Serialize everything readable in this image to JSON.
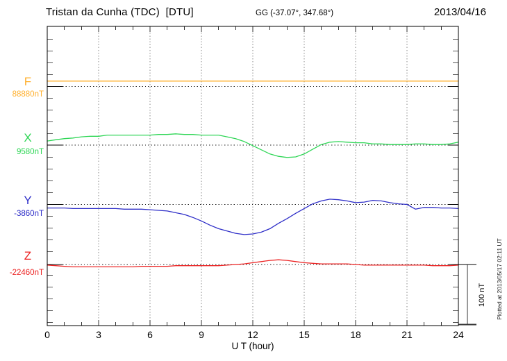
{
  "header": {
    "station_title": "Tristan da Cunha (TDC)  [DTU]",
    "coords": "GG (-37.07°, 347.68°)",
    "date": "2013/04/16"
  },
  "side": {
    "scale_label": "100 nT",
    "plotted_at": "Plotted at 2013/05/17 02:11 UT"
  },
  "axis": {
    "xlabel": "U T (hour)",
    "x_ticks": [
      0,
      3,
      6,
      9,
      12,
      15,
      18,
      21,
      24
    ]
  },
  "chart_data": {
    "type": "line",
    "title": "Magnetogram Tristan da Cunha (TDC) [DTU] 2013/04/16",
    "x_unit": "UT hour",
    "x_range": [
      0,
      24
    ],
    "grid_hours": [
      3,
      6,
      9,
      12,
      15,
      18,
      21
    ],
    "scale_bar_nT": 100,
    "series": [
      {
        "id": "F",
        "label": "F",
        "baseline_label": "88880nT",
        "baseline_value": 88880,
        "color": "#ffb02e",
        "points": [
          [
            0,
            88889
          ],
          [
            24,
            88889
          ]
        ]
      },
      {
        "id": "X",
        "label": "X",
        "baseline_label": "9580nT",
        "baseline_value": 9580,
        "color": "#2fd656",
        "points": [
          [
            0,
            9587
          ],
          [
            0.5,
            9589
          ],
          [
            1,
            9591
          ],
          [
            1.5,
            9592
          ],
          [
            2,
            9594
          ],
          [
            2.5,
            9595
          ],
          [
            3,
            9595
          ],
          [
            3.5,
            9597
          ],
          [
            4,
            9597
          ],
          [
            4.5,
            9597
          ],
          [
            5,
            9597
          ],
          [
            5.5,
            9597
          ],
          [
            6,
            9597
          ],
          [
            6.5,
            9598
          ],
          [
            7,
            9598
          ],
          [
            7.5,
            9599
          ],
          [
            8,
            9598
          ],
          [
            8.5,
            9598
          ],
          [
            9,
            9597
          ],
          [
            9.5,
            9597
          ],
          [
            10,
            9597
          ],
          [
            10.5,
            9594
          ],
          [
            11,
            9591
          ],
          [
            11.5,
            9586
          ],
          [
            12,
            9579
          ],
          [
            12.5,
            9572
          ],
          [
            13,
            9565
          ],
          [
            13.5,
            9561
          ],
          [
            14,
            9559
          ],
          [
            14.5,
            9560
          ],
          [
            15,
            9565
          ],
          [
            15.5,
            9573
          ],
          [
            16,
            9581
          ],
          [
            16.5,
            9585
          ],
          [
            17,
            9586
          ],
          [
            17.5,
            9585
          ],
          [
            18,
            9584
          ],
          [
            18.5,
            9584
          ],
          [
            19,
            9582
          ],
          [
            19.5,
            9582
          ],
          [
            20,
            9581
          ],
          [
            20.5,
            9581
          ],
          [
            21,
            9581
          ],
          [
            21.5,
            9582
          ],
          [
            22,
            9582
          ],
          [
            22.5,
            9581
          ],
          [
            23,
            9581
          ],
          [
            23.5,
            9582
          ],
          [
            24,
            9585
          ]
        ]
      },
      {
        "id": "Y",
        "label": "Y",
        "baseline_label": "-3860nT",
        "baseline_value": -3860,
        "color": "#2e2ec8",
        "points": [
          [
            0,
            -3866
          ],
          [
            0.5,
            -3866
          ],
          [
            1,
            -3866
          ],
          [
            1.5,
            -3867
          ],
          [
            2,
            -3867
          ],
          [
            2.5,
            -3867
          ],
          [
            3,
            -3867
          ],
          [
            3.5,
            -3867
          ],
          [
            4,
            -3867
          ],
          [
            4.5,
            -3868
          ],
          [
            5,
            -3868
          ],
          [
            5.5,
            -3868
          ],
          [
            6,
            -3869
          ],
          [
            6.5,
            -3870
          ],
          [
            7,
            -3871
          ],
          [
            7.5,
            -3874
          ],
          [
            8,
            -3877
          ],
          [
            8.5,
            -3882
          ],
          [
            9,
            -3888
          ],
          [
            9.5,
            -3895
          ],
          [
            10,
            -3901
          ],
          [
            10.5,
            -3905
          ],
          [
            11,
            -3909
          ],
          [
            11.5,
            -3911
          ],
          [
            12,
            -3910
          ],
          [
            12.5,
            -3907
          ],
          [
            13,
            -3901
          ],
          [
            13.5,
            -3892
          ],
          [
            14,
            -3884
          ],
          [
            14.5,
            -3875
          ],
          [
            15,
            -3867
          ],
          [
            15.5,
            -3859
          ],
          [
            16,
            -3854
          ],
          [
            16.5,
            -3851
          ],
          [
            17,
            -3852
          ],
          [
            17.5,
            -3854
          ],
          [
            18,
            -3857
          ],
          [
            18.5,
            -3856
          ],
          [
            19,
            -3853
          ],
          [
            19.5,
            -3854
          ],
          [
            20,
            -3857
          ],
          [
            20.5,
            -3859
          ],
          [
            21,
            -3860
          ],
          [
            21.5,
            -3868
          ],
          [
            22,
            -3865
          ],
          [
            22.5,
            -3865
          ],
          [
            23,
            -3866
          ],
          [
            23.5,
            -3866
          ],
          [
            24,
            -3867
          ]
        ]
      },
      {
        "id": "Z",
        "label": "Z",
        "baseline_label": "-22460nT",
        "baseline_value": -22460,
        "color": "#ec2222",
        "points": [
          [
            0,
            -22461
          ],
          [
            0.5,
            -22462
          ],
          [
            1,
            -22463
          ],
          [
            1.5,
            -22464
          ],
          [
            2,
            -22464
          ],
          [
            2.5,
            -22464
          ],
          [
            3,
            -22464
          ],
          [
            3.5,
            -22464
          ],
          [
            4,
            -22464
          ],
          [
            4.5,
            -22464
          ],
          [
            5,
            -22464
          ],
          [
            5.5,
            -22463
          ],
          [
            6,
            -22463
          ],
          [
            6.5,
            -22463
          ],
          [
            7,
            -22463
          ],
          [
            7.5,
            -22462
          ],
          [
            8,
            -22462
          ],
          [
            8.5,
            -22462
          ],
          [
            9,
            -22462
          ],
          [
            9.5,
            -22462
          ],
          [
            10,
            -22462
          ],
          [
            10.5,
            -22461
          ],
          [
            11,
            -22460
          ],
          [
            11.5,
            -22459
          ],
          [
            12,
            -22457
          ],
          [
            12.5,
            -22455
          ],
          [
            13,
            -22453
          ],
          [
            13.5,
            -22452
          ],
          [
            14,
            -22453
          ],
          [
            14.5,
            -22455
          ],
          [
            15,
            -22457
          ],
          [
            15.5,
            -22458
          ],
          [
            16,
            -22459
          ],
          [
            16.5,
            -22459
          ],
          [
            17,
            -22459
          ],
          [
            17.5,
            -22459
          ],
          [
            18,
            -22460
          ],
          [
            18.5,
            -22461
          ],
          [
            19,
            -22461
          ],
          [
            19.5,
            -22461
          ],
          [
            20,
            -22461
          ],
          [
            20.5,
            -22461
          ],
          [
            21,
            -22461
          ],
          [
            21.5,
            -22461
          ],
          [
            22,
            -22461
          ],
          [
            22.5,
            -22462
          ],
          [
            23,
            -22462
          ],
          [
            23.5,
            -22462
          ],
          [
            24,
            -22461
          ]
        ]
      }
    ]
  }
}
